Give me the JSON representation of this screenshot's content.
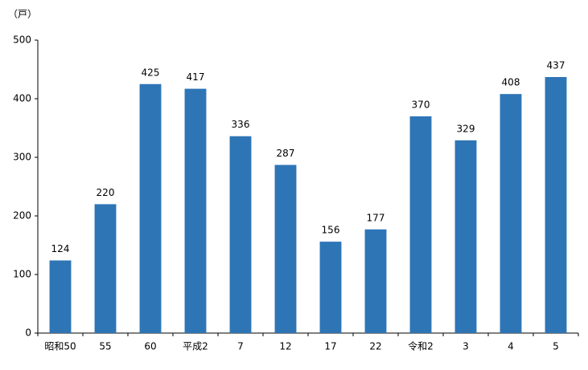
{
  "chart_data": {
    "type": "bar",
    "y_unit_label": "（戸）",
    "categories": [
      "昭和50",
      "55",
      "60",
      "平成2",
      "7",
      "12",
      "17",
      "22",
      "令和2",
      "3",
      "4",
      "5"
    ],
    "values": [
      124,
      220,
      425,
      417,
      336,
      287,
      156,
      177,
      370,
      329,
      408,
      437
    ],
    "color": "#2e75b6",
    "ylim": [
      0,
      500
    ],
    "yticks": [
      0,
      100,
      200,
      300,
      400,
      500
    ],
    "grid": false,
    "data_labels": true
  }
}
